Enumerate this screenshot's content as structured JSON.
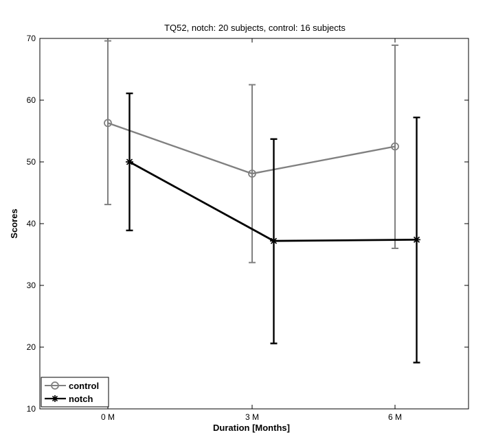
{
  "chart_data": {
    "type": "line",
    "title": "TQ52, notch: 20 subjects, control: 16 subjects",
    "xlabel": "Duration [Months]",
    "ylabel": "Scores",
    "categories": [
      "0 M",
      "3 M",
      "6 M"
    ],
    "ylim": [
      10,
      70
    ],
    "yticks": [
      10,
      20,
      30,
      40,
      50,
      60,
      70
    ],
    "grid": false,
    "legend_position": "bottom-left",
    "series": [
      {
        "name": "control",
        "marker": "circle",
        "color": "#808080",
        "x_offset": 0,
        "values": [
          56.3,
          48.1,
          52.5
        ],
        "err_low": [
          43.1,
          33.7,
          36.0
        ],
        "err_high": [
          69.6,
          62.5,
          68.9
        ]
      },
      {
        "name": "notch",
        "marker": "star",
        "color": "#000000",
        "x_offset": 0.15,
        "values": [
          50.0,
          37.2,
          37.4
        ],
        "err_low": [
          38.9,
          20.6,
          17.5
        ],
        "err_high": [
          61.1,
          53.7,
          57.2
        ]
      }
    ]
  }
}
